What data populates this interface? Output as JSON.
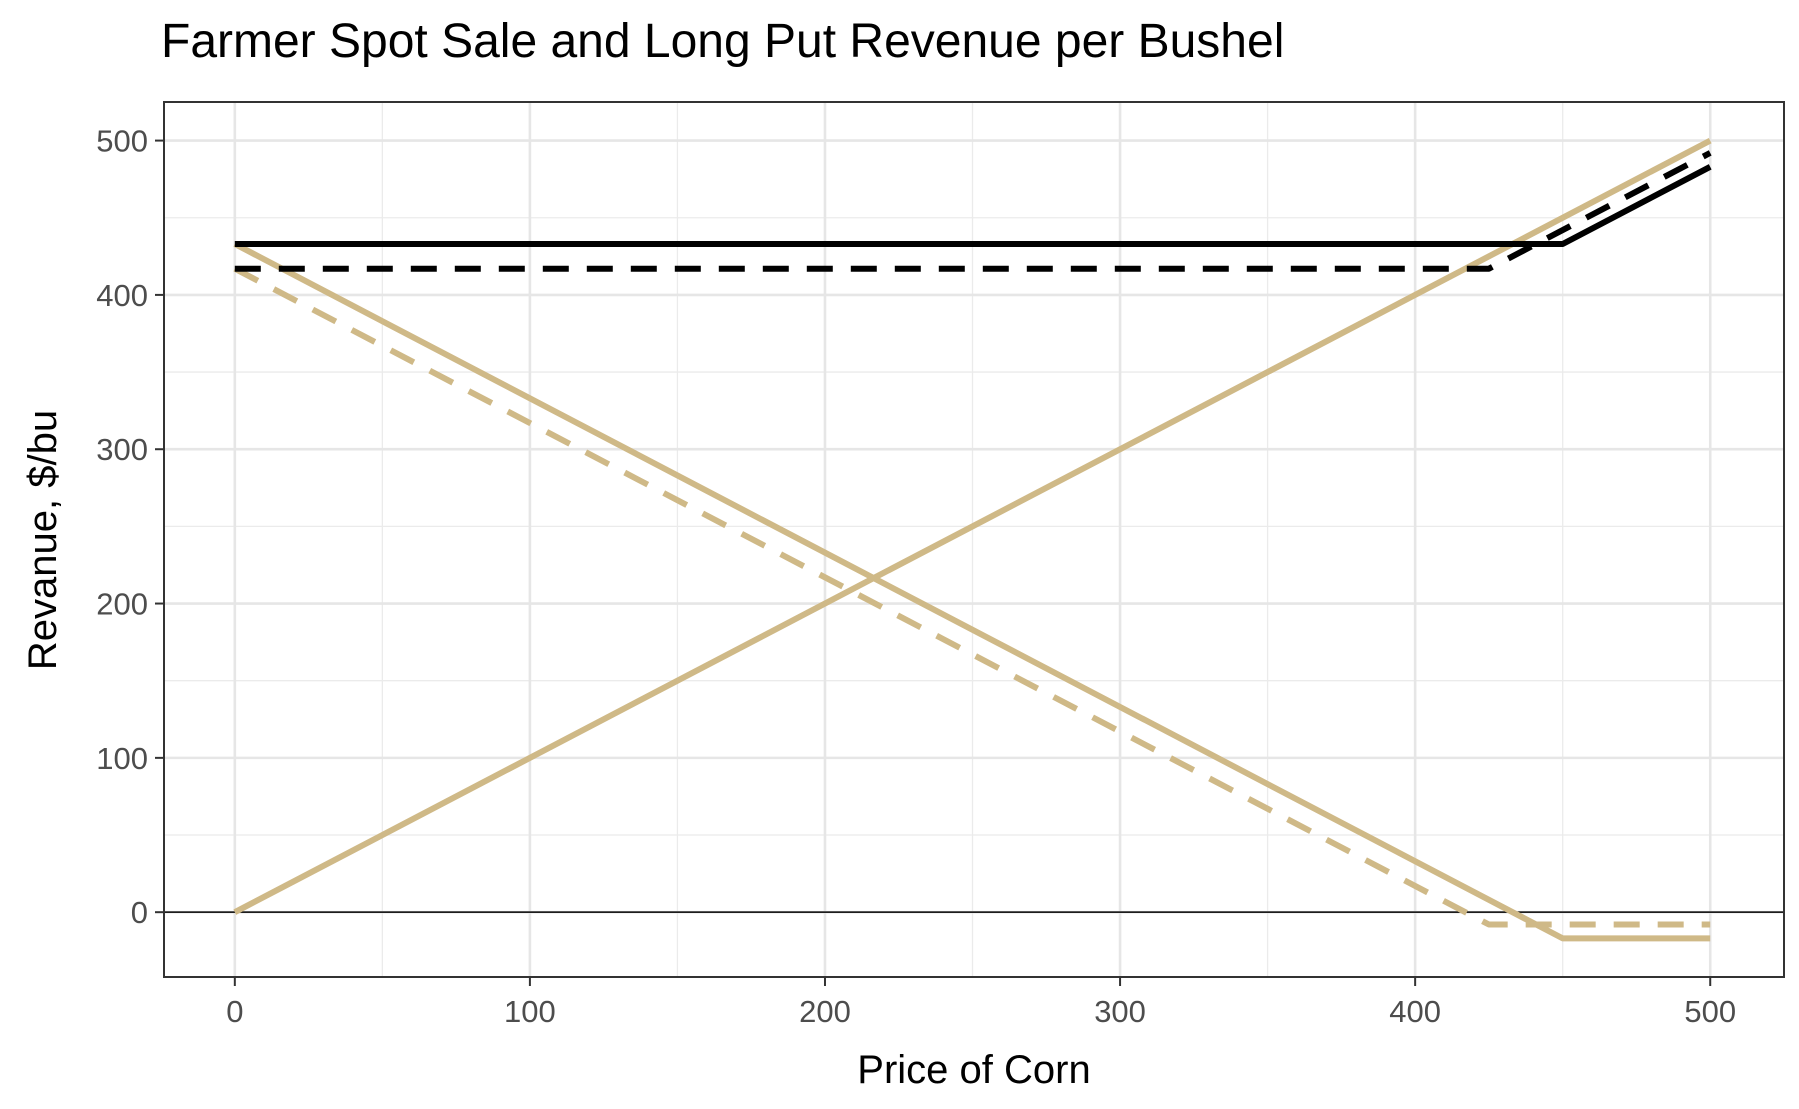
{
  "chart_data": {
    "type": "line",
    "title": "Farmer Spot Sale and Long Put Revenue per Bushel",
    "xlabel": "Price of Corn",
    "ylabel": "Revanue, $/bu",
    "xlim": [
      -24,
      525
    ],
    "ylim": [
      -42,
      525
    ],
    "x_ticks": [
      0,
      100,
      200,
      300,
      400,
      500
    ],
    "y_ticks": [
      0,
      100,
      200,
      300,
      400,
      500
    ],
    "x_minor": [
      50,
      150,
      250,
      350,
      450
    ],
    "y_minor": [
      50,
      150,
      250,
      350,
      450
    ],
    "grid": true,
    "hline_at": 0,
    "legend": "none",
    "colors": {
      "tan": "#cfb987",
      "black": "#000000"
    },
    "series": [
      {
        "color": "#cfb987",
        "dash": "solid",
        "x": [
          0,
          500
        ],
        "y": [
          0,
          500
        ]
      },
      {
        "color": "#cfb987",
        "dash": "solid",
        "x": [
          0,
          450,
          500
        ],
        "y": [
          433,
          -17,
          -17
        ]
      },
      {
        "color": "#cfb987",
        "dash": "dashed",
        "x": [
          0,
          425,
          500
        ],
        "y": [
          417,
          -8,
          -8
        ]
      },
      {
        "color": "#000000",
        "dash": "solid",
        "x": [
          0,
          450,
          500
        ],
        "y": [
          433,
          433,
          483
        ]
      },
      {
        "color": "#000000",
        "dash": "dashed",
        "x": [
          0,
          425,
          500
        ],
        "y": [
          417,
          417,
          492
        ]
      }
    ]
  }
}
